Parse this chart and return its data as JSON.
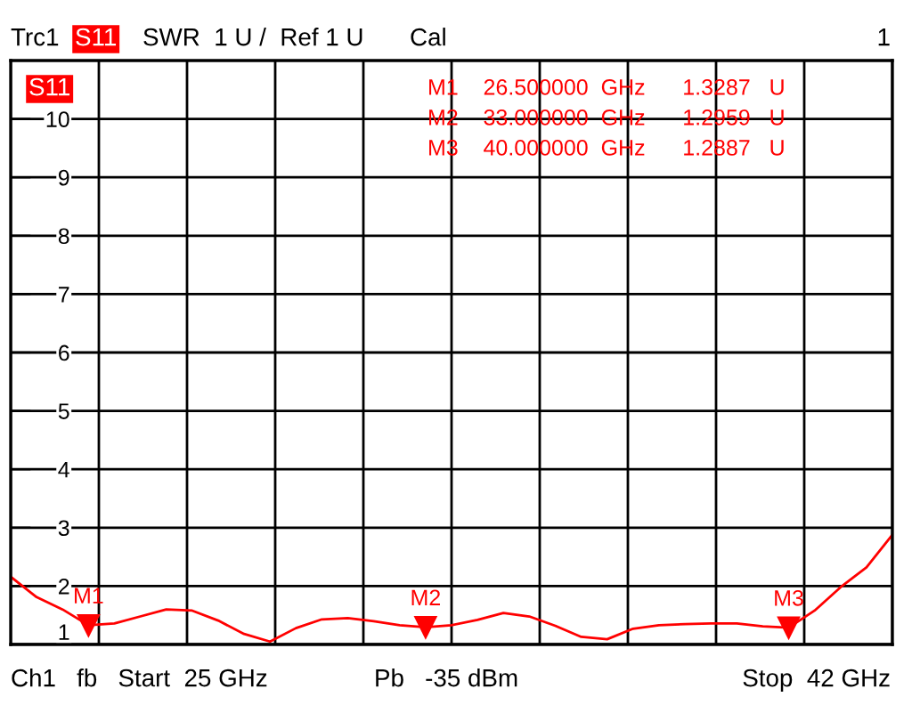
{
  "chart_data": {
    "type": "line",
    "categories": [
      null,
      null,
      null,
      null,
      null,
      null,
      null,
      null,
      null,
      null,
      null,
      null,
      null,
      null,
      null,
      null,
      null,
      null,
      null,
      null,
      null,
      null,
      null,
      null,
      null,
      null,
      null,
      null,
      null,
      null,
      null,
      null,
      null,
      null,
      null
    ],
    "series": [
      {
        "color": "#ff0000",
        "values": [
          2.16,
          1.81,
          1.6,
          1.3287,
          1.36,
          1.48,
          1.6,
          1.58,
          1.41,
          1.18,
          1.05,
          1.28,
          1.43,
          1.45,
          1.4,
          1.33,
          1.2959,
          1.33,
          1.42,
          1.54,
          1.48,
          1.32,
          1.13,
          1.09,
          1.27,
          1.33,
          1.35,
          1.36,
          1.36,
          1.31,
          1.2887,
          1.58,
          1.98,
          2.32,
          2.88
        ]
      },
      {
        "type": "scatter",
        "color": "#ff0000",
        "marker": "triangle",
        "values": [
          null,
          null,
          null,
          1.3287,
          null,
          null,
          null,
          null,
          null,
          null,
          null,
          null,
          null,
          null,
          null,
          null,
          1.2959,
          null,
          null,
          null,
          null,
          null,
          null,
          null,
          null,
          null,
          null,
          null,
          null,
          null,
          1.2887,
          null,
          null,
          null,
          null
        ],
        "value_labels": [
          null,
          null,
          null,
          "M1",
          null,
          null,
          null,
          null,
          null,
          null,
          null,
          null,
          null,
          null,
          null,
          null,
          "M2",
          null,
          null,
          null,
          null,
          null,
          null,
          null,
          null,
          null,
          null,
          null,
          null,
          null,
          "M3",
          null,
          null,
          null,
          null
        ]
      }
    ],
    "ylim": [
      1,
      11
    ],
    "yticks": [
      1,
      2,
      3,
      4,
      5,
      6,
      7,
      8,
      9,
      10
    ],
    "grid": true,
    "marker": "none",
    "line_style": "solid",
    "annotations": [
      "Trc1",
      "S11",
      "SWR  1 U /  Ref 1 U",
      "Cal",
      "1",
      "S11",
      "M1    26.500000  GHz      1.3287   U",
      "M2    33.000000  GHz      1.2959   U",
      "M3    40.000000  GHz      1.2887   U",
      "Ch1   fb   Start  25 GHz",
      "Pb   -35 dBm",
      "Stop  42 GHz"
    ]
  }
}
